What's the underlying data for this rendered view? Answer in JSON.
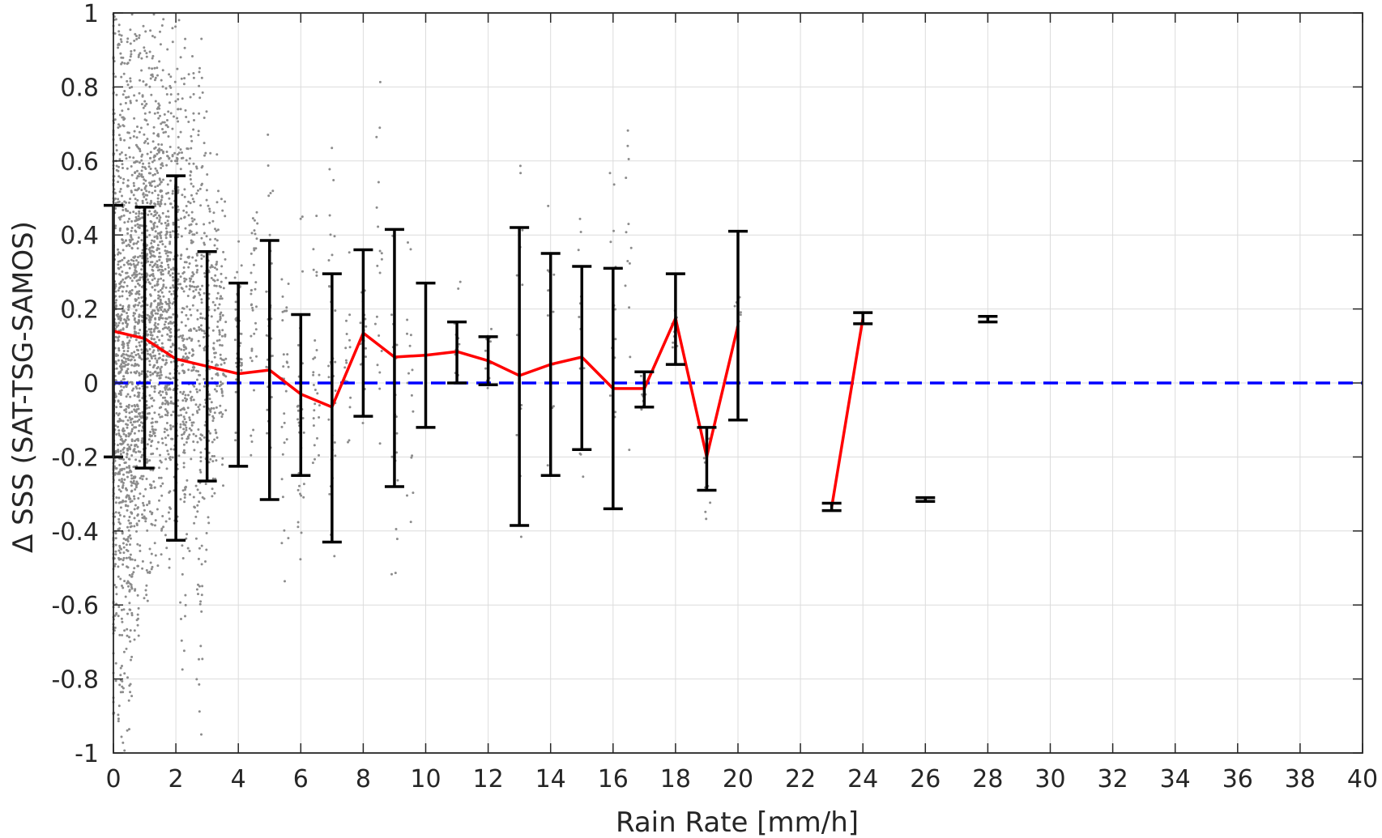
{
  "chart_data": {
    "type": "scatter",
    "title": "",
    "xlabel": "Rain Rate [mm/h]",
    "ylabel": "Δ SSS (SAT-TSG-SAMOS)",
    "xlim": [
      0,
      40
    ],
    "ylim": [
      -1,
      1
    ],
    "grid": true,
    "legend": "none",
    "x_ticks": [
      "0",
      "2",
      "4",
      "6",
      "8",
      "10",
      "12",
      "14",
      "16",
      "18",
      "20",
      "22",
      "24",
      "26",
      "28",
      "30",
      "32",
      "34",
      "36",
      "38",
      "40"
    ],
    "y_ticks": [
      "1",
      "0.8",
      "0.6",
      "0.4",
      "0.2",
      "0",
      "-0.2",
      "-0.4",
      "-0.6",
      "-0.8",
      "-1"
    ],
    "colors": {
      "scatter": "#8c8c8c",
      "mean_line": "#ff0000",
      "error_bars": "#000000",
      "zero_line": "#0000ff",
      "grid": "#dcdcdc",
      "axes": "#262626"
    },
    "mean_line_segments": [
      {
        "x": [
          0,
          1,
          2,
          3,
          4,
          5,
          6,
          7,
          8,
          9,
          10,
          11,
          12,
          13,
          14,
          15,
          16,
          17,
          18,
          19,
          20
        ],
        "y": [
          0.14,
          0.12,
          0.065,
          0.045,
          0.025,
          0.035,
          -0.03,
          -0.065,
          0.135,
          0.07,
          0.075,
          0.085,
          0.06,
          0.02,
          0.05,
          0.07,
          -0.015,
          -0.015,
          0.175,
          -0.2,
          0.155
        ]
      },
      {
        "x": [
          23,
          24
        ],
        "y": [
          -0.335,
          0.175
        ]
      }
    ],
    "error_bars": [
      {
        "x": 0,
        "low": -0.2,
        "high": 0.48
      },
      {
        "x": 1,
        "low": -0.23,
        "high": 0.475
      },
      {
        "x": 2,
        "low": -0.425,
        "high": 0.56
      },
      {
        "x": 3,
        "low": -0.265,
        "high": 0.355
      },
      {
        "x": 4,
        "low": -0.225,
        "high": 0.27
      },
      {
        "x": 5,
        "low": -0.315,
        "high": 0.385
      },
      {
        "x": 6,
        "low": -0.25,
        "high": 0.185
      },
      {
        "x": 7,
        "low": -0.43,
        "high": 0.295
      },
      {
        "x": 8,
        "low": -0.09,
        "high": 0.36
      },
      {
        "x": 9,
        "low": -0.28,
        "high": 0.415
      },
      {
        "x": 10,
        "low": -0.12,
        "high": 0.27
      },
      {
        "x": 11,
        "low": 0.0,
        "high": 0.165
      },
      {
        "x": 12,
        "low": -0.005,
        "high": 0.125
      },
      {
        "x": 13,
        "low": -0.385,
        "high": 0.42
      },
      {
        "x": 14,
        "low": -0.25,
        "high": 0.35
      },
      {
        "x": 15,
        "low": -0.18,
        "high": 0.315
      },
      {
        "x": 16,
        "low": -0.34,
        "high": 0.31
      },
      {
        "x": 17,
        "low": -0.065,
        "high": 0.03
      },
      {
        "x": 18,
        "low": 0.05,
        "high": 0.295
      },
      {
        "x": 19,
        "low": -0.29,
        "high": -0.12
      },
      {
        "x": 20,
        "low": -0.1,
        "high": 0.41
      },
      {
        "x": 23,
        "low": -0.345,
        "high": -0.325
      },
      {
        "x": 24,
        "low": 0.16,
        "high": 0.19
      },
      {
        "x": 26,
        "low": -0.32,
        "high": -0.31
      },
      {
        "x": 28,
        "low": 0.165,
        "high": 0.18
      }
    ],
    "zero_line": {
      "y": 0,
      "style": "dashed"
    },
    "scatter_columns": [
      {
        "x": 0.0,
        "y_min": -0.9,
        "y_max": 1.0,
        "density": 1.0
      },
      {
        "x": 0.25,
        "y_min": -1.0,
        "y_max": 1.0,
        "density": 1.0
      },
      {
        "x": 0.5,
        "y_min": -0.95,
        "y_max": 1.0,
        "density": 0.95
      },
      {
        "x": 0.75,
        "y_min": -0.7,
        "y_max": 1.0,
        "density": 0.9
      },
      {
        "x": 1.0,
        "y_min": -0.6,
        "y_max": 1.0,
        "density": 0.85
      },
      {
        "x": 1.25,
        "y_min": -0.55,
        "y_max": 1.0,
        "density": 0.8
      },
      {
        "x": 1.5,
        "y_min": -0.5,
        "y_max": 1.0,
        "density": 0.7
      },
      {
        "x": 1.75,
        "y_min": -0.5,
        "y_max": 0.95,
        "density": 0.6
      },
      {
        "x": 2.0,
        "y_min": -0.45,
        "y_max": 1.0,
        "density": 0.5
      },
      {
        "x": 2.25,
        "y_min": -0.8,
        "y_max": 0.95,
        "density": 0.45
      },
      {
        "x": 2.5,
        "y_min": -0.5,
        "y_max": 0.9,
        "density": 0.4
      },
      {
        "x": 2.75,
        "y_min": -0.95,
        "y_max": 0.95,
        "density": 0.35
      },
      {
        "x": 3.0,
        "y_min": -0.55,
        "y_max": 0.8,
        "density": 0.3
      },
      {
        "x": 3.25,
        "y_min": -0.4,
        "y_max": 0.65,
        "density": 0.25
      },
      {
        "x": 3.5,
        "y_min": -0.3,
        "y_max": 0.5,
        "density": 0.2
      },
      {
        "x": 4.0,
        "y_min": -0.25,
        "y_max": 0.5,
        "density": 0.15
      },
      {
        "x": 4.5,
        "y_min": -0.2,
        "y_max": 0.6,
        "density": 0.12
      },
      {
        "x": 5.0,
        "y_min": -0.3,
        "y_max": 0.7,
        "density": 0.12
      },
      {
        "x": 5.5,
        "y_min": -0.55,
        "y_max": 0.4,
        "density": 0.1
      },
      {
        "x": 6.0,
        "y_min": -0.6,
        "y_max": 0.45,
        "density": 0.1
      },
      {
        "x": 6.5,
        "y_min": -0.45,
        "y_max": 0.5,
        "density": 0.08
      },
      {
        "x": 7.0,
        "y_min": -0.67,
        "y_max": 0.8,
        "density": 0.1
      },
      {
        "x": 7.5,
        "y_min": -0.22,
        "y_max": 0.4,
        "density": 0.06
      },
      {
        "x": 8.0,
        "y_min": -0.12,
        "y_max": 0.35,
        "density": 0.06
      },
      {
        "x": 8.5,
        "y_min": -0.3,
        "y_max": 0.85,
        "density": 0.06
      },
      {
        "x": 9.0,
        "y_min": -0.55,
        "y_max": 0.45,
        "density": 0.06
      },
      {
        "x": 9.5,
        "y_min": -0.4,
        "y_max": 0.45,
        "density": 0.05
      },
      {
        "x": 11.0,
        "y_min": -0.05,
        "y_max": 0.3,
        "density": 0.04
      },
      {
        "x": 12.0,
        "y_min": -0.05,
        "y_max": 0.2,
        "density": 0.04
      },
      {
        "x": 13.0,
        "y_min": -0.45,
        "y_max": 0.76,
        "density": 0.04
      },
      {
        "x": 14.0,
        "y_min": -0.3,
        "y_max": 0.8,
        "density": 0.04
      },
      {
        "x": 15.0,
        "y_min": -0.35,
        "y_max": 0.45,
        "density": 0.04
      },
      {
        "x": 16.0,
        "y_min": -0.37,
        "y_max": 0.68,
        "density": 0.04
      },
      {
        "x": 16.5,
        "y_min": -0.3,
        "y_max": 0.8,
        "density": 0.04
      },
      {
        "x": 17.0,
        "y_min": -0.12,
        "y_max": 0.04,
        "density": 0.03
      },
      {
        "x": 18.0,
        "y_min": 0.05,
        "y_max": 0.3,
        "density": 0.03
      },
      {
        "x": 19.0,
        "y_min": -0.37,
        "y_max": -0.1,
        "density": 0.03
      },
      {
        "x": 20.0,
        "y_min": 0.15,
        "y_max": 0.25,
        "density": 0.03
      }
    ]
  }
}
